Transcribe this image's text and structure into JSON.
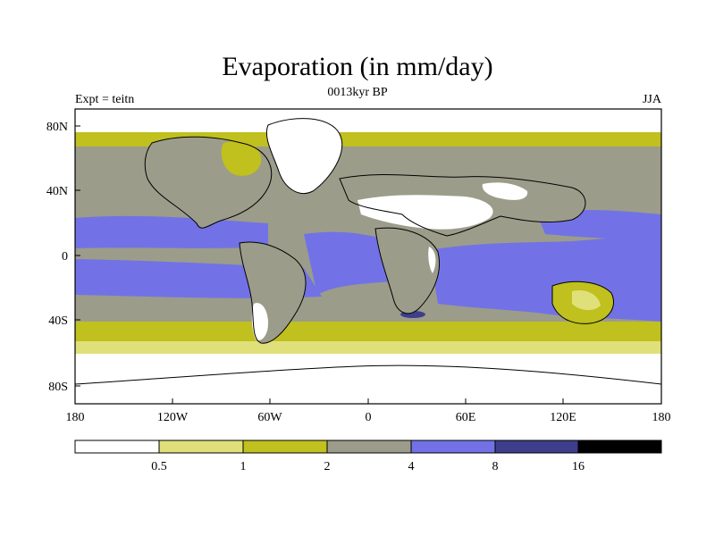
{
  "header": {
    "title": "Evaporation (in mm/day)",
    "subtitle": "0013kyr BP",
    "experiment": "Expt = teitn",
    "season": "JJA"
  },
  "map_data": {
    "type": "filled-contour-map",
    "projection": "cylindrical-equidistant",
    "lat_ticks": [
      "80N",
      "40N",
      "0",
      "40S",
      "80S"
    ],
    "lon_ticks": [
      "180",
      "120W",
      "60W",
      "0",
      "60E",
      "120E",
      "180"
    ]
  },
  "colorbar": {
    "labels": [
      "0.5",
      "1",
      "2",
      "4",
      "8",
      "16"
    ],
    "colors": [
      "#ffffff",
      "#e0e07a",
      "#c0c01e",
      "#9c9c8a",
      "#7272e6",
      "#3e3e8c",
      "#000000"
    ]
  },
  "legend_bins": [
    {
      "range": "< 0.5",
      "color": "#ffffff"
    },
    {
      "range": "0.5 - 1",
      "color": "#e0e07a"
    },
    {
      "range": "1 - 2",
      "color": "#c0c01e"
    },
    {
      "range": "2 - 4",
      "color": "#9c9c8a"
    },
    {
      "range": "4 - 8",
      "color": "#7272e6"
    },
    {
      "range": "8 - 16",
      "color": "#3e3e8c"
    },
    {
      "range": "> 16",
      "color": "#000000"
    }
  ]
}
